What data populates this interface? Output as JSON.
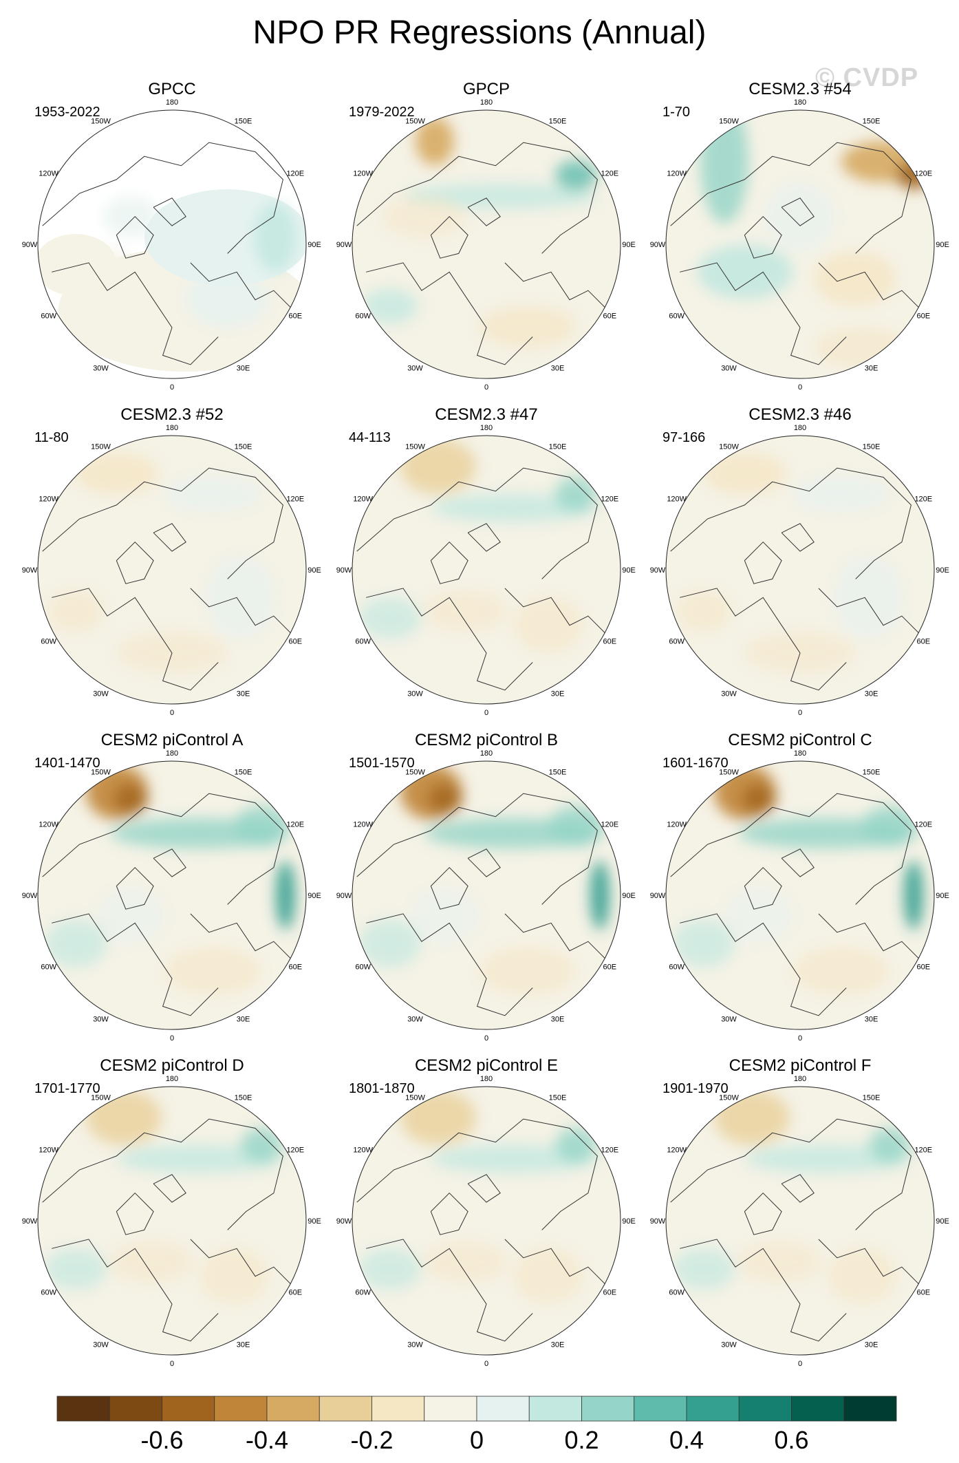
{
  "title": "NPO PR Regressions (Annual)",
  "watermark": "© CVDP",
  "lon_labels": [
    "180",
    "150E",
    "120E",
    "90E",
    "60E",
    "30E",
    "0",
    "30W",
    "60W",
    "90W",
    "120W",
    "150W"
  ],
  "panels": [
    {
      "title": "GPCC",
      "period": "1953-2022",
      "style": "gpcc"
    },
    {
      "title": "GPCP",
      "period": "1979-2022",
      "style": "obs"
    },
    {
      "title": "CESM2.3 #54",
      "period": "1-70",
      "style": "m54"
    },
    {
      "title": "CESM2.3 #52",
      "period": "11-80",
      "style": "weak"
    },
    {
      "title": "CESM2.3 #47",
      "period": "44-113",
      "style": "mid"
    },
    {
      "title": "CESM2.3 #46",
      "period": "97-166",
      "style": "weak"
    },
    {
      "title": "CESM2 piControl A",
      "period": "1401-1470",
      "style": "strong"
    },
    {
      "title": "CESM2 piControl B",
      "period": "1501-1570",
      "style": "strong"
    },
    {
      "title": "CESM2 piControl C",
      "period": "1601-1670",
      "style": "strong"
    },
    {
      "title": "CESM2 piControl D",
      "period": "1701-1770",
      "style": "mid"
    },
    {
      "title": "CESM2 piControl E",
      "period": "1801-1870",
      "style": "mid"
    },
    {
      "title": "CESM2 piControl F",
      "period": "1901-1970",
      "style": "mid"
    }
  ],
  "colorbar": {
    "colors": [
      "#5a3410",
      "#7d4a14",
      "#a0641f",
      "#c08538",
      "#d6aa62",
      "#e8cf98",
      "#f5e6c4",
      "#f5f2e6",
      "#e5f2f0",
      "#c3e8e0",
      "#94d5c7",
      "#5fbcac",
      "#33a090",
      "#157f70",
      "#05604f",
      "#003d30"
    ],
    "tick_labels": [
      "-0.6",
      "-0.4",
      "-0.2",
      "0",
      "0.2",
      "0.4",
      "0.6"
    ],
    "tick_values": [
      -0.6,
      -0.4,
      -0.2,
      0,
      0.2,
      0.4,
      0.6
    ],
    "range": [
      -0.8,
      0.8
    ]
  }
}
